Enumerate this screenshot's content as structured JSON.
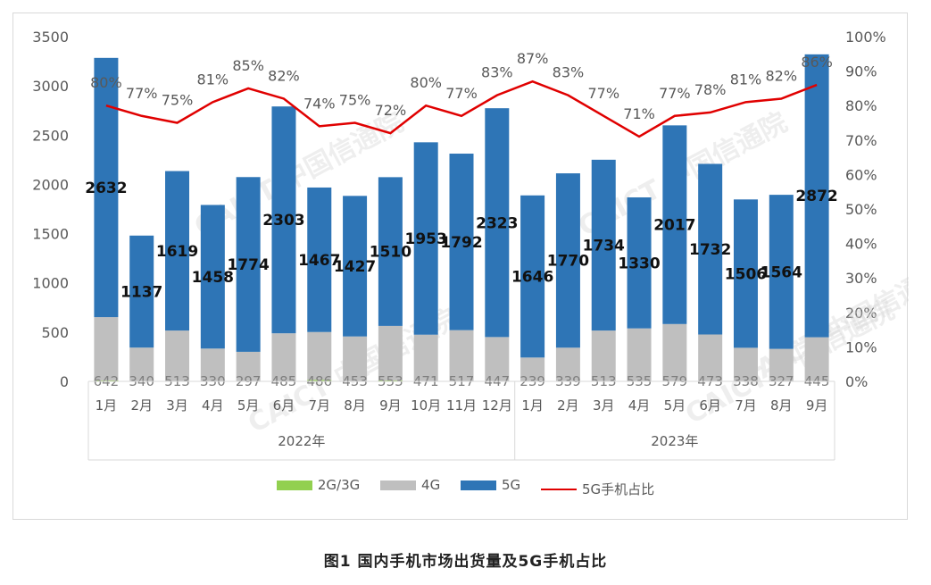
{
  "caption": "图1   国内手机市场出货量及5G手机占比",
  "legend": [
    {
      "label": "2G/3G",
      "color": "#92d050",
      "kind": "bar"
    },
    {
      "label": "4G",
      "color": "#bfbfbf",
      "kind": "bar"
    },
    {
      "label": "5G",
      "color": "#2e75b6",
      "kind": "bar"
    },
    {
      "label": "5G手机占比",
      "color": "#e00000",
      "kind": "line"
    }
  ],
  "watermark": "CAICT 中国信通院",
  "chart_data": {
    "type": "bar",
    "stacked": true,
    "categories": [
      "1月",
      "2月",
      "3月",
      "4月",
      "5月",
      "6月",
      "7月",
      "8月",
      "9月",
      "10月",
      "11月",
      "12月",
      "1月",
      "2月",
      "3月",
      "4月",
      "5月",
      "6月",
      "7月",
      "8月",
      "9月"
    ],
    "groups": [
      {
        "label": "2022年",
        "count": 12
      },
      {
        "label": "2023年",
        "count": 9
      }
    ],
    "series": [
      {
        "name": "2G/3G",
        "color": "#92d050",
        "values": [
          10,
          3,
          3,
          3,
          3,
          3,
          15,
          3,
          10,
          3,
          3,
          3,
          3,
          3,
          3,
          3,
          3,
          3,
          3,
          3,
          3
        ],
        "labels": [
          "",
          "",
          "",
          "",
          "",
          "",
          "",
          "",
          "",
          "",
          "",
          "",
          "",
          "",
          "",
          "",
          "",
          "",
          "",
          "",
          ""
        ]
      },
      {
        "name": "4G",
        "color": "#bfbfbf",
        "values": [
          642,
          340,
          513,
          330,
          297,
          485,
          486,
          453,
          553,
          471,
          517,
          447,
          239,
          339,
          513,
          535,
          579,
          473,
          338,
          327,
          445
        ],
        "labels": [
          "642",
          "340",
          "513",
          "330",
          "297",
          "485",
          "486",
          "453",
          "553",
          "471",
          "517",
          "447",
          "239",
          "339",
          "513",
          "535",
          "579",
          "473",
          "338",
          "327",
          "445"
        ]
      },
      {
        "name": "5G",
        "color": "#2e75b6",
        "values": [
          2632,
          1137,
          1619,
          1458,
          1774,
          2303,
          1467,
          1427,
          1510,
          1953,
          1792,
          2323,
          1646,
          1770,
          1734,
          1330,
          2017,
          1732,
          1506,
          1564,
          2872
        ],
        "labels": [
          "2632",
          "1137",
          "1619",
          "1458",
          "1774",
          "2303",
          "1467",
          "1427",
          "1510",
          "1953",
          "1792",
          "2323",
          "1646",
          "1770",
          "1734",
          "1330",
          "2017",
          "1732",
          "1506",
          "1564",
          "2872"
        ]
      },
      {
        "name": "5G手机占比",
        "type": "line",
        "axis": "right",
        "color": "#e00000",
        "values": [
          80,
          77,
          75,
          81,
          85,
          82,
          74,
          75,
          72,
          80,
          77,
          83,
          87,
          83,
          77,
          71,
          77,
          78,
          81,
          82,
          86
        ],
        "labels": [
          "80%",
          "77%",
          "75%",
          "81%",
          "85%",
          "82%",
          "74%",
          "75%",
          "72%",
          "80%",
          "77%",
          "83%",
          "87%",
          "83%",
          "77%",
          "71%",
          "77%",
          "78%",
          "81%",
          "82%",
          "86%"
        ]
      }
    ],
    "y_left": {
      "min": 0,
      "max": 3500,
      "ticks": [
        "0",
        "500",
        "1000",
        "1500",
        "2000",
        "2500",
        "3000",
        "3500"
      ]
    },
    "y_right": {
      "min": 0,
      "max": 100,
      "ticks": [
        "0%",
        "10%",
        "20%",
        "30%",
        "40%",
        "50%",
        "60%",
        "70%",
        "80%",
        "90%",
        "100%"
      ]
    },
    "grid": false
  }
}
